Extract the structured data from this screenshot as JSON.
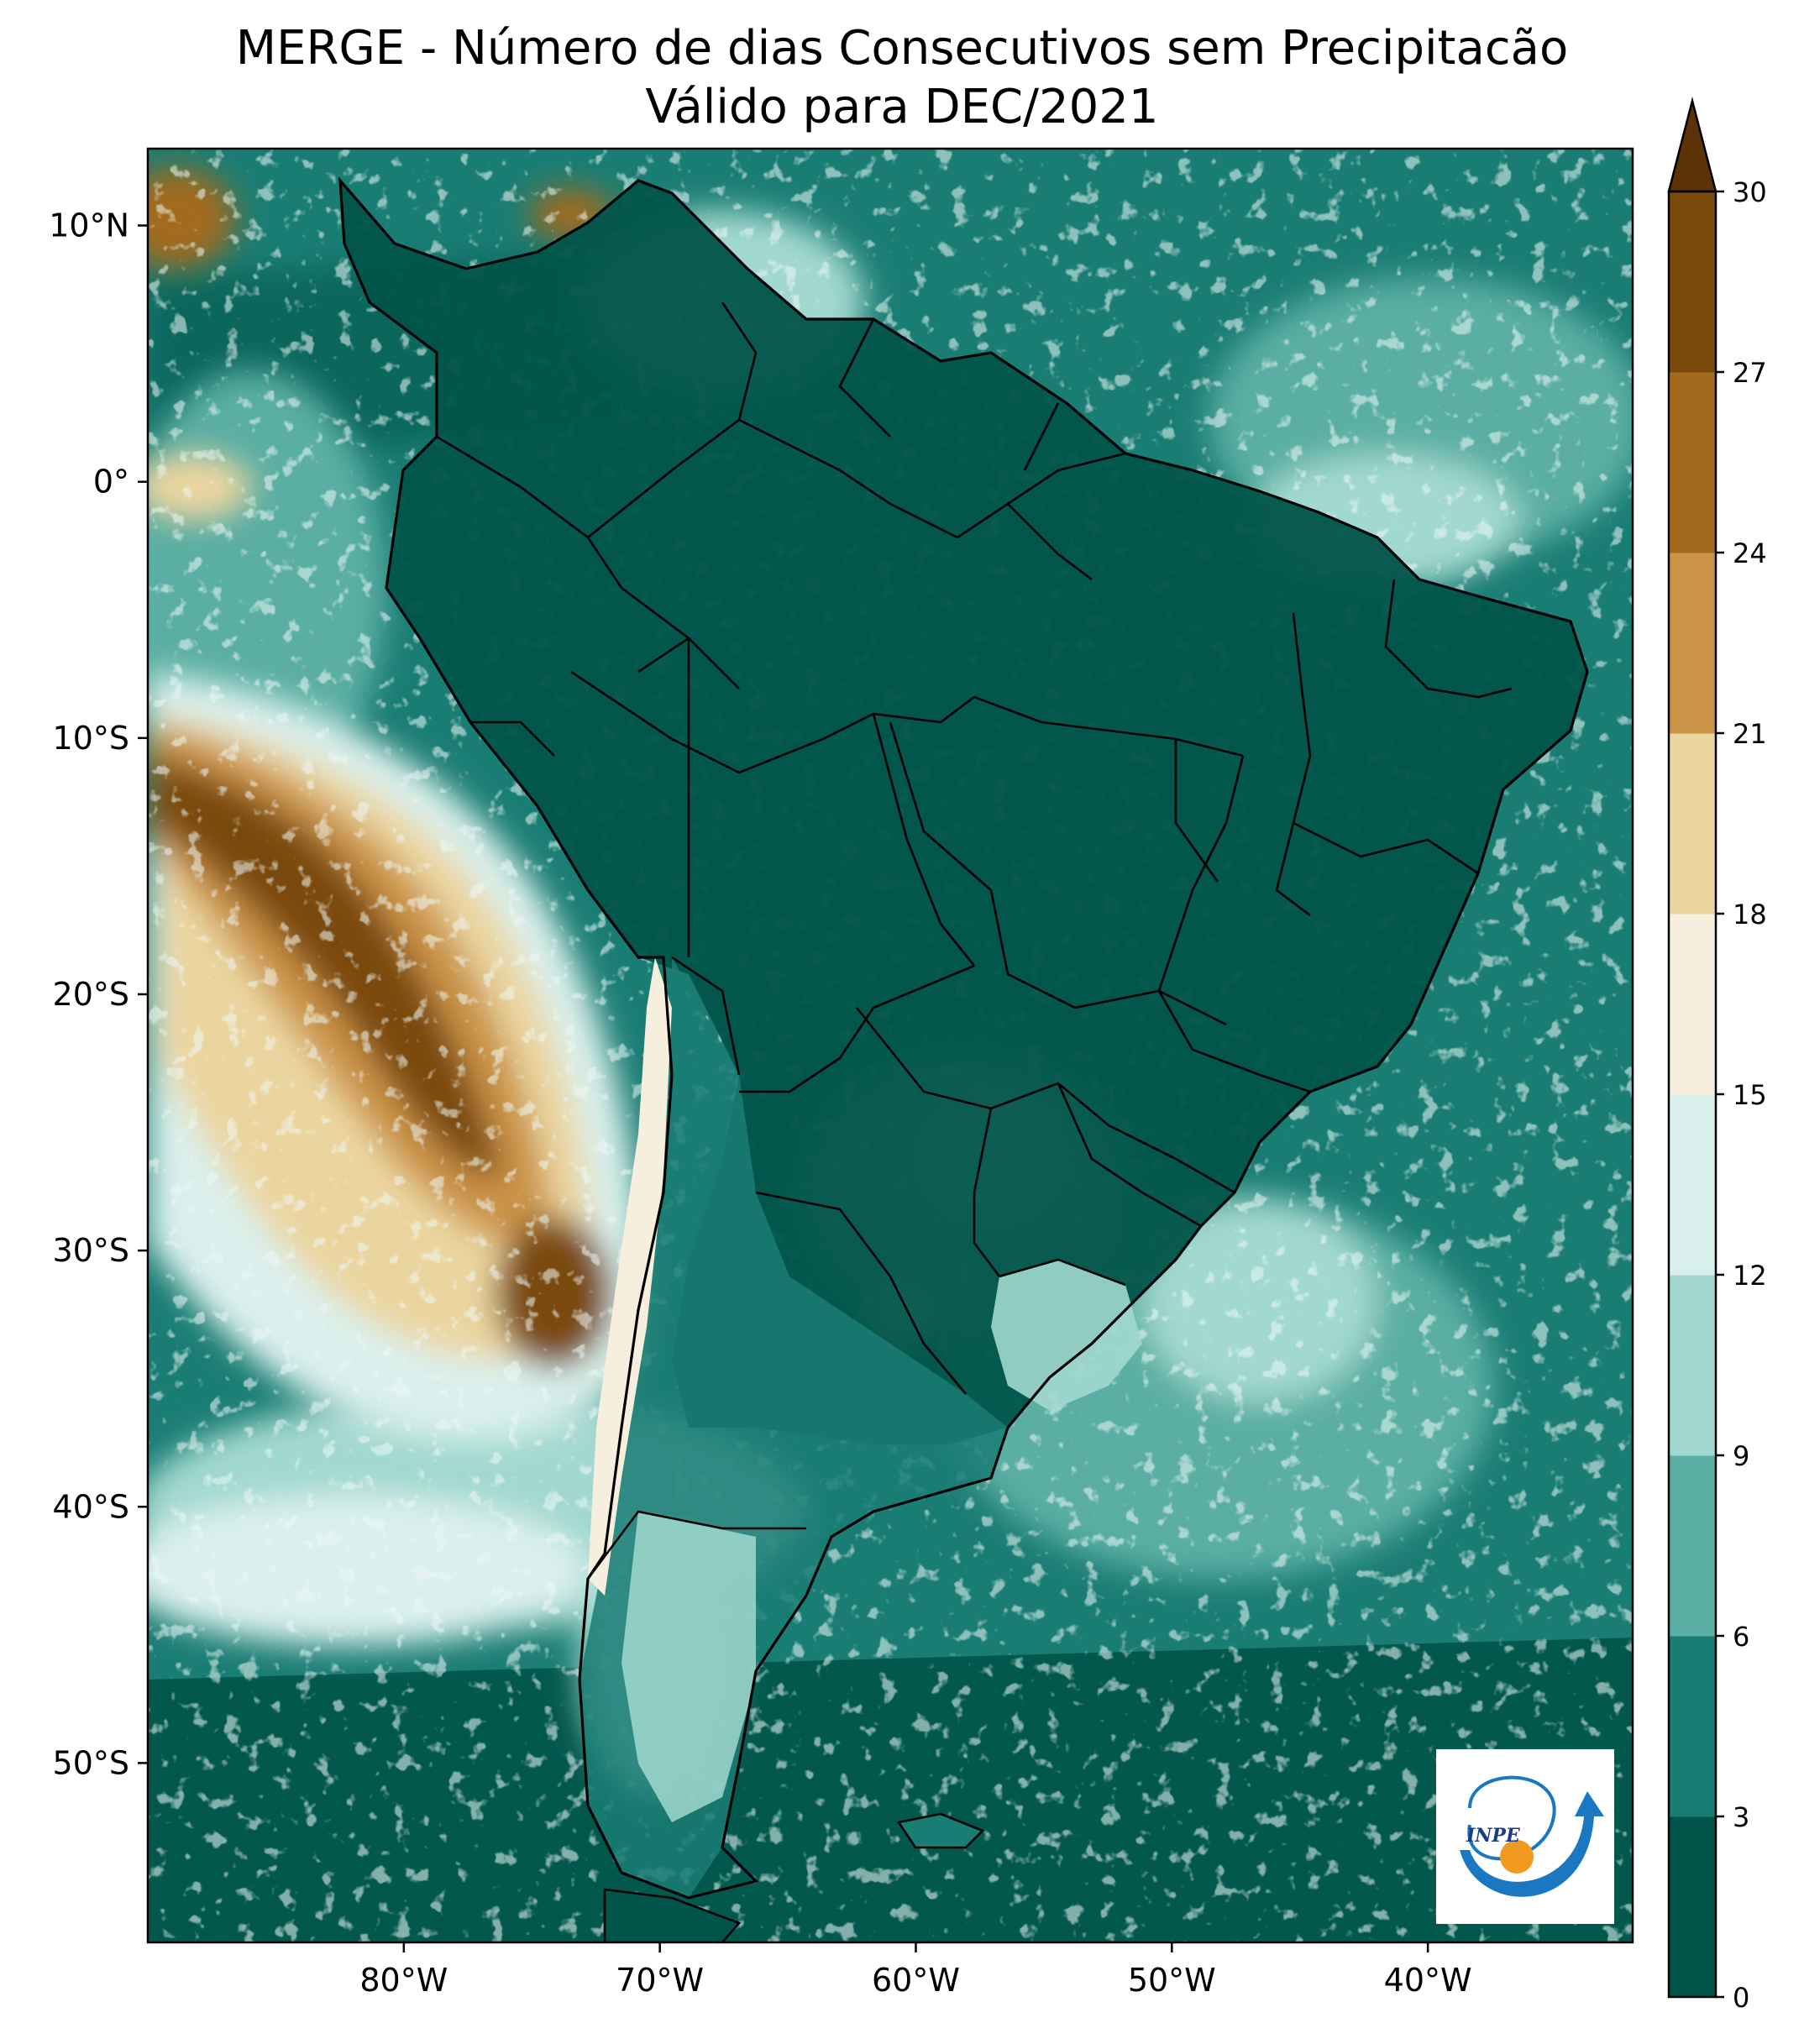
{
  "title": {
    "line1": "MERGE - Número de dias Consecutivos sem Precipitacão",
    "line2": "Válido para DEC/2021"
  },
  "map": {
    "lon_range": [
      -90,
      -32
    ],
    "lat_range": [
      -57,
      13
    ],
    "lon_ticks": [
      {
        "value": -80,
        "label": "80°W"
      },
      {
        "value": -70,
        "label": "70°W"
      },
      {
        "value": -60,
        "label": "60°W"
      },
      {
        "value": -50,
        "label": "50°W"
      },
      {
        "value": -40,
        "label": "40°W"
      }
    ],
    "lat_ticks": [
      {
        "value": 10,
        "label": "10°N"
      },
      {
        "value": 0,
        "label": "0°"
      },
      {
        "value": -10,
        "label": "10°S"
      },
      {
        "value": -20,
        "label": "20°S"
      },
      {
        "value": -30,
        "label": "30°S"
      },
      {
        "value": -40,
        "label": "40°S"
      },
      {
        "value": -50,
        "label": "50°S"
      }
    ]
  },
  "colorbar": {
    "levels": [
      0,
      3,
      6,
      9,
      12,
      15,
      18,
      21,
      24,
      27,
      30
    ],
    "labels": [
      "0",
      "3",
      "6",
      "9",
      "12",
      "15",
      "18",
      "21",
      "24",
      "27",
      "30"
    ],
    "colors": [
      "#01544a",
      "#1a7d74",
      "#5aaea3",
      "#a1d8cf",
      "#daf0ec",
      "#f6efdd",
      "#ebd59f",
      "#ca9346",
      "#a36a1d",
      "#7a4a0c"
    ],
    "extend_color": "#5c3306"
  },
  "logo": {
    "text": "INPE",
    "ring_color": "#1a78c2",
    "sun_color": "#f29a1f"
  }
}
